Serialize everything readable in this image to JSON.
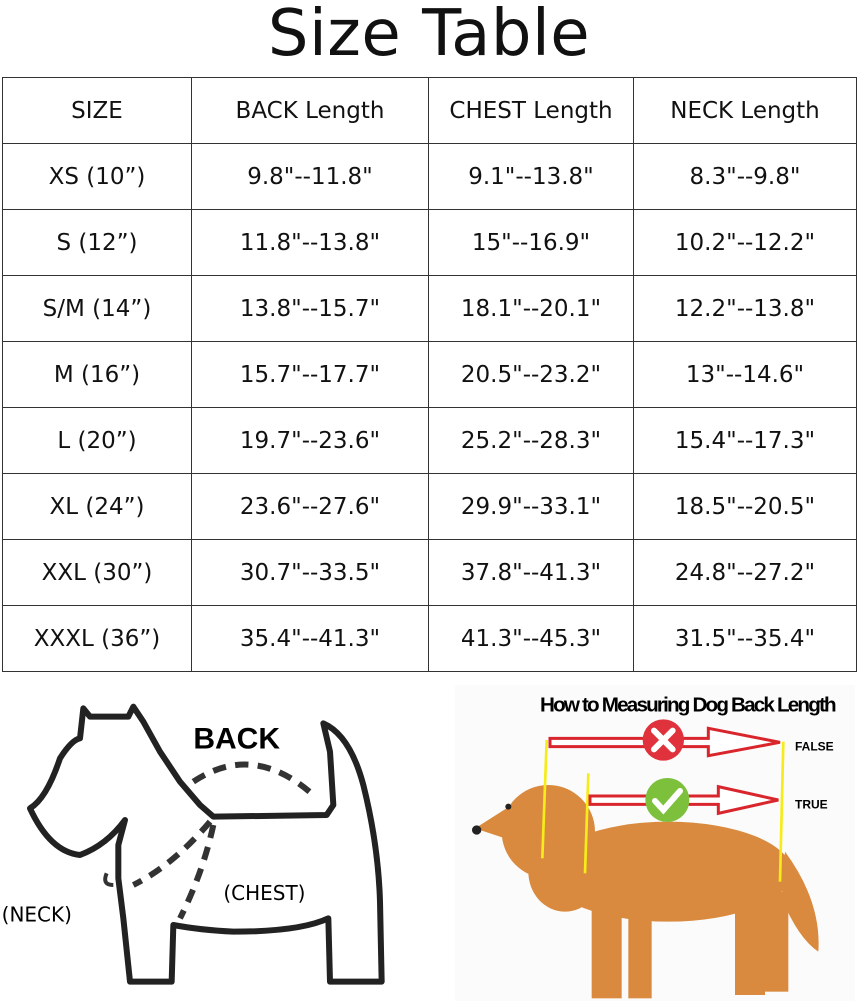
{
  "title": "Size Table",
  "table": {
    "headers": [
      "SIZE",
      "BACK Length",
      "CHEST Length",
      "NECK Length"
    ],
    "rows": [
      [
        "XS (10”)",
        "9.8\"--11.8\"",
        "9.1\"--13.8\"",
        "8.3\"--9.8\""
      ],
      [
        "S (12”)",
        "11.8\"--13.8\"",
        "15\"--16.9\"",
        "10.2\"--12.2\""
      ],
      [
        "S/M (14”)",
        "13.8\"--15.7\"",
        "18.1\"--20.1\"",
        "12.2\"--13.8\""
      ],
      [
        "M (16”)",
        "15.7\"--17.7\"",
        "20.5\"--23.2\"",
        "13\"--14.6\""
      ],
      [
        "L (20”)",
        "19.7\"--23.6\"",
        "25.2\"--28.3\"",
        "15.4\"--17.3\""
      ],
      [
        "XL (24”)",
        "23.6\"--27.6\"",
        "29.9\"--33.1\"",
        "18.5\"--20.5\""
      ],
      [
        "XXL (30”)",
        "30.7\"--33.5\"",
        "37.8\"--41.3\"",
        "24.8\"--27.2\""
      ],
      [
        "XXXL (36”)",
        "35.4\"--41.3\"",
        "41.3\"--45.3\"",
        "31.5\"--35.4\""
      ]
    ]
  },
  "diagram": {
    "back_label": "BACK",
    "chest_label": "(CHEST)",
    "neck_label": "(NECK)"
  },
  "photo": {
    "heading": "How to Measuring Dog Back Length",
    "false_label": "FALSE",
    "true_label": "TRUE",
    "colors": {
      "arrow": "#d8262c",
      "wrong": "#e0323c",
      "right": "#7cc03c",
      "guide": "#f5ec1a",
      "dog": "#d98a3e"
    }
  }
}
